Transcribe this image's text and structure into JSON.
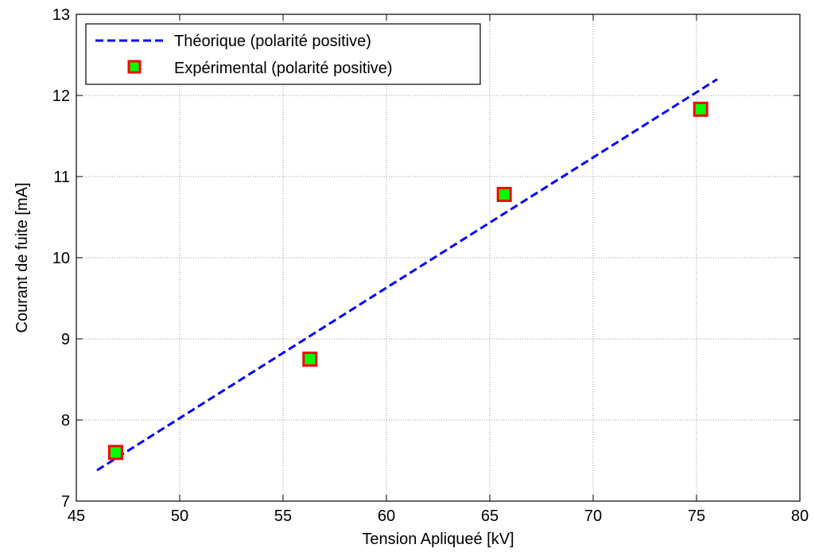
{
  "chart_data": {
    "type": "line",
    "xlabel": "Tension Apliqueé [kV]",
    "ylabel": "Courant de fuite [mA]",
    "xlim": [
      45,
      80
    ],
    "ylim": [
      7,
      13
    ],
    "xticks": [
      45,
      50,
      55,
      60,
      65,
      70,
      75,
      80
    ],
    "yticks": [
      7,
      8,
      9,
      10,
      11,
      12,
      13
    ],
    "grid": true,
    "legend_position": "top-left",
    "series": [
      {
        "name": "Théorique (polarité positive)",
        "style": "dashed-line",
        "color": "#0000ff",
        "x": [
          46,
          76
        ],
        "y": [
          7.38,
          12.2
        ]
      },
      {
        "name": "Expérimental (polarité positive)",
        "style": "square-markers",
        "marker_edge_color": "#ff0000",
        "marker_face_color": "#00ff00",
        "x": [
          46.9,
          56.3,
          65.7,
          75.2
        ],
        "y": [
          7.6,
          8.75,
          10.78,
          11.83
        ]
      }
    ]
  }
}
